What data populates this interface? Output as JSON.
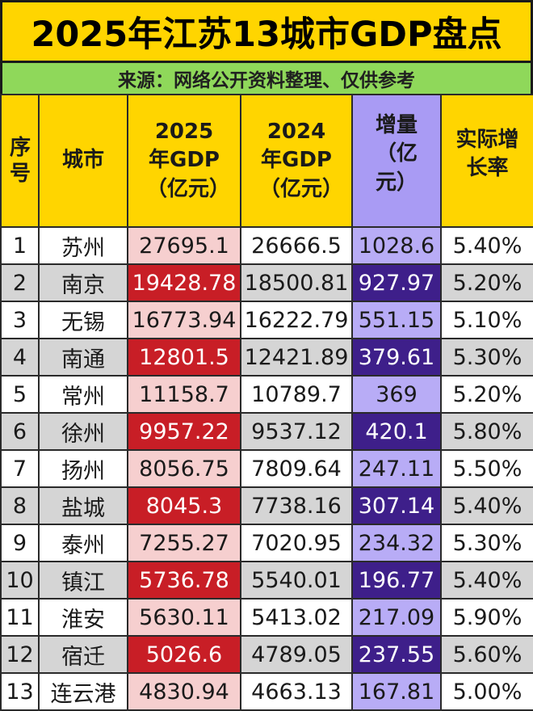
{
  "title": "2025年江苏13城市GDP盘点",
  "source": "来源：网络公开资料整理、仅供参考",
  "headers": {
    "no": "序号",
    "city": "城市",
    "gdp2025": "2025年GDP（亿元）",
    "gdp2024": "2024年GDP（亿元）",
    "increase": "增量（亿元）",
    "growth": "实际增长率"
  },
  "colors": {
    "title_bg": "#ffd500",
    "source_bg": "#8fd85a",
    "header_bg": "#ffd500",
    "increase_header_bg": "#a99bf4",
    "gdp2025_light": "#f6cfcf",
    "gdp2025_dark": "#c81e26",
    "increase_light": "#b8acf6",
    "increase_dark": "#3e1f8a",
    "row_alt": "#d5d5d5"
  },
  "rows": [
    {
      "no": "1",
      "city": "苏州",
      "gdp2025": "27695.1",
      "gdp2024": "26666.5",
      "increase": "1028.6",
      "growth": "5.40%"
    },
    {
      "no": "2",
      "city": "南京",
      "gdp2025": "19428.78",
      "gdp2024": "18500.81",
      "increase": "927.97",
      "growth": "5.20%"
    },
    {
      "no": "3",
      "city": "无锡",
      "gdp2025": "16773.94",
      "gdp2024": "16222.79",
      "increase": "551.15",
      "growth": "5.10%"
    },
    {
      "no": "4",
      "city": "南通",
      "gdp2025": "12801.5",
      "gdp2024": "12421.89",
      "increase": "379.61",
      "growth": "5.30%"
    },
    {
      "no": "5",
      "city": "常州",
      "gdp2025": "11158.7",
      "gdp2024": "10789.7",
      "increase": "369",
      "growth": "5.20%"
    },
    {
      "no": "6",
      "city": "徐州",
      "gdp2025": "9957.22",
      "gdp2024": "9537.12",
      "increase": "420.1",
      "growth": "5.80%"
    },
    {
      "no": "7",
      "city": "扬州",
      "gdp2025": "8056.75",
      "gdp2024": "7809.64",
      "increase": "247.11",
      "growth": "5.50%"
    },
    {
      "no": "8",
      "city": "盐城",
      "gdp2025": "8045.3",
      "gdp2024": "7738.16",
      "increase": "307.14",
      "growth": "5.40%"
    },
    {
      "no": "9",
      "city": "泰州",
      "gdp2025": "7255.27",
      "gdp2024": "7020.95",
      "increase": "234.32",
      "growth": "5.30%"
    },
    {
      "no": "10",
      "city": "镇江",
      "gdp2025": "5736.78",
      "gdp2024": "5540.01",
      "increase": "196.77",
      "growth": "5.40%"
    },
    {
      "no": "11",
      "city": "淮安",
      "gdp2025": "5630.11",
      "gdp2024": "5413.02",
      "increase": "217.09",
      "growth": "5.90%"
    },
    {
      "no": "12",
      "city": "宿迁",
      "gdp2025": "5026.6",
      "gdp2024": "4789.05",
      "increase": "237.55",
      "growth": "5.60%"
    },
    {
      "no": "13",
      "city": "连云港",
      "gdp2025": "4830.94",
      "gdp2024": "4663.13",
      "increase": "167.81",
      "growth": "5.00%"
    }
  ]
}
